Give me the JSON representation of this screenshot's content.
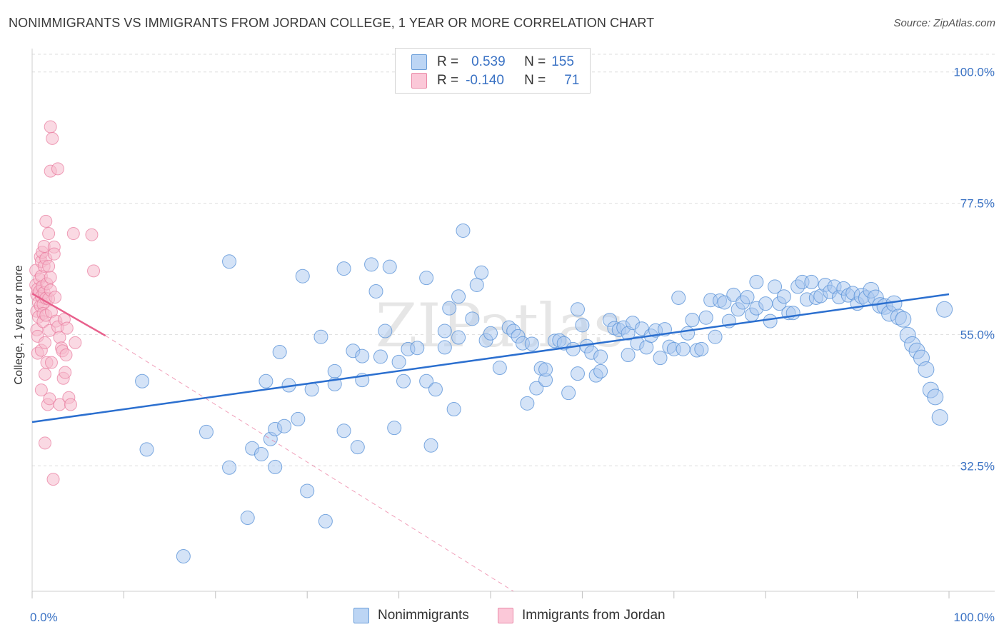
{
  "header": {
    "title": "NONIMMIGRANTS VS IMMIGRANTS FROM JORDAN COLLEGE, 1 YEAR OR MORE CORRELATION CHART",
    "source": "Source: ZipAtlas.com"
  },
  "legend_stats": [
    {
      "r_label": "R =",
      "r_value": "0.539",
      "n_label": "N =",
      "n_value": "155"
    },
    {
      "r_label": "R =",
      "r_value": "-0.140",
      "n_label": "N =",
      "n_value": "71"
    }
  ],
  "colors": {
    "blue_fill": "#a9c8f0",
    "blue_stroke": "#5b93d8",
    "blue_line": "#2b6fcf",
    "pink_fill": "#f6b9cc",
    "pink_stroke": "#e8799c",
    "pink_line": "#e8608c",
    "tick_text": "#3a72c4",
    "grid": "#dedede"
  },
  "chart_data": {
    "type": "scatter",
    "title": "NONIMMIGRANTS VS IMMIGRANTS FROM JORDAN COLLEGE, 1 YEAR OR MORE CORRELATION CHART",
    "xlabel": "",
    "ylabel": "College, 1 year or more",
    "xlim": [
      0,
      100
    ],
    "ylim": [
      11,
      104
    ],
    "x_tick_labels": [
      "0.0%",
      "100.0%"
    ],
    "y_ticks": [
      32.5,
      55.0,
      77.5,
      100.0
    ],
    "y_tick_labels": [
      "32.5%",
      "55.0%",
      "77.5%",
      "100.0%"
    ],
    "grid": "horizontal dashed",
    "legend_position": "top-center and bottom",
    "watermark": "ZIPatlas",
    "series": [
      {
        "name": "Nonimmigrants",
        "r": 0.539,
        "n": 155,
        "trend": {
          "x": [
            0,
            100
          ],
          "y": [
            40.0,
            61.9
          ]
        },
        "points": [
          [
            12,
            47
          ],
          [
            12.5,
            35.3
          ],
          [
            16.5,
            17
          ],
          [
            19,
            38.3
          ],
          [
            21.5,
            67.5
          ],
          [
            21.5,
            32.2
          ],
          [
            23.5,
            23.6
          ],
          [
            24,
            35.5
          ],
          [
            25,
            34.5
          ],
          [
            25.5,
            47
          ],
          [
            26,
            37.1
          ],
          [
            26.5,
            38.8
          ],
          [
            26.5,
            32.3
          ],
          [
            27,
            52
          ],
          [
            27.5,
            39.3
          ],
          [
            28,
            46.3
          ],
          [
            29,
            40.5
          ],
          [
            29.5,
            65
          ],
          [
            30,
            28.2
          ],
          [
            30.5,
            45.6
          ],
          [
            31.5,
            54.6
          ],
          [
            32,
            23
          ],
          [
            33,
            46.5
          ],
          [
            33,
            48.7
          ],
          [
            34,
            66.3
          ],
          [
            34,
            38.5
          ],
          [
            35,
            52.2
          ],
          [
            35.5,
            35.7
          ],
          [
            36,
            51.3
          ],
          [
            36,
            47.2
          ],
          [
            37,
            67
          ],
          [
            37.5,
            62.4
          ],
          [
            38,
            51.2
          ],
          [
            38.5,
            55.6
          ],
          [
            39,
            66.6
          ],
          [
            39.5,
            39
          ],
          [
            40,
            50.3
          ],
          [
            40.5,
            47
          ],
          [
            41,
            52.5
          ],
          [
            42,
            52.7
          ],
          [
            43,
            47
          ],
          [
            43,
            64.7
          ],
          [
            43.5,
            36
          ],
          [
            44,
            45.6
          ],
          [
            45,
            52.8
          ],
          [
            45,
            55.6
          ],
          [
            45.5,
            59.5
          ],
          [
            46,
            42.2
          ],
          [
            46.5,
            61.5
          ],
          [
            46.5,
            54.5
          ],
          [
            47,
            72.8
          ],
          [
            48,
            57.7
          ],
          [
            48.5,
            63.5
          ],
          [
            49,
            65.6
          ],
          [
            49.5,
            54
          ],
          [
            50,
            55.2
          ],
          [
            51,
            49.3
          ],
          [
            52,
            56.2
          ],
          [
            52.5,
            55.6
          ],
          [
            53,
            54.7
          ],
          [
            53.5,
            53.5
          ],
          [
            54,
            43.2
          ],
          [
            54.5,
            53.4
          ],
          [
            55,
            45.8
          ],
          [
            55.5,
            49.2
          ],
          [
            56,
            47.2
          ],
          [
            56,
            49
          ],
          [
            57,
            53.9
          ],
          [
            57.5,
            54
          ],
          [
            58,
            53.5
          ],
          [
            58.5,
            45
          ],
          [
            59,
            52.5
          ],
          [
            59.5,
            59.3
          ],
          [
            59.5,
            48.3
          ],
          [
            60,
            56.6
          ],
          [
            60.5,
            53
          ],
          [
            61,
            51.9
          ],
          [
            61.5,
            48
          ],
          [
            62,
            48.7
          ],
          [
            62,
            51.2
          ],
          [
            63,
            57.5
          ],
          [
            63.5,
            56.1
          ],
          [
            64,
            55.8
          ],
          [
            64.5,
            56.2
          ],
          [
            65,
            55.2
          ],
          [
            65,
            51.5
          ],
          [
            65.5,
            57
          ],
          [
            66,
            53.5
          ],
          [
            66.5,
            56
          ],
          [
            67,
            52.8
          ],
          [
            67.5,
            54.8
          ],
          [
            68,
            55.7
          ],
          [
            68.5,
            51
          ],
          [
            69,
            55.9
          ],
          [
            69.5,
            52.9
          ],
          [
            70,
            52.5
          ],
          [
            70.5,
            61.3
          ],
          [
            71,
            52.5
          ],
          [
            71.5,
            55.2
          ],
          [
            72,
            57.5
          ],
          [
            72.5,
            52.3
          ],
          [
            73,
            52.5
          ],
          [
            73.5,
            57.9
          ],
          [
            74,
            60.9
          ],
          [
            74.5,
            54.6
          ],
          [
            75,
            60.8
          ],
          [
            75.5,
            60.5
          ],
          [
            76,
            57.3
          ],
          [
            76.5,
            61.8
          ],
          [
            77,
            59.3
          ],
          [
            77.5,
            60.5
          ],
          [
            78,
            61.4
          ],
          [
            78.5,
            58.4
          ],
          [
            79,
            59.5
          ],
          [
            79,
            64
          ],
          [
            80,
            60.3
          ],
          [
            80.5,
            57.3
          ],
          [
            81,
            63.2
          ],
          [
            81.5,
            60.3
          ],
          [
            82,
            61.5
          ],
          [
            82.5,
            58.7
          ],
          [
            83,
            58.7
          ],
          [
            83.5,
            63.2
          ],
          [
            84,
            64
          ],
          [
            84.5,
            61
          ],
          [
            85,
            64
          ],
          [
            85.5,
            61.3
          ],
          [
            86,
            61.6
          ],
          [
            86.5,
            63.5
          ],
          [
            87,
            62.3
          ],
          [
            87.5,
            63.2
          ],
          [
            88,
            61.4
          ],
          [
            88.5,
            62.9
          ],
          [
            89,
            61.7
          ],
          [
            89.5,
            62.1
          ],
          [
            90,
            60.3
          ],
          [
            90.5,
            61.6
          ],
          [
            91,
            61.2
          ],
          [
            91.5,
            62.6
          ],
          [
            92,
            61.3
          ],
          [
            92.5,
            60
          ],
          [
            93,
            59.8
          ],
          [
            93.5,
            58.6
          ],
          [
            94,
            60.3
          ],
          [
            94.5,
            58
          ],
          [
            95,
            57.6
          ],
          [
            95.5,
            54.9
          ],
          [
            96,
            53.3
          ],
          [
            96.5,
            52.2
          ],
          [
            97,
            51
          ],
          [
            97.5,
            49
          ],
          [
            98,
            45.5
          ],
          [
            98.5,
            44.3
          ],
          [
            99,
            40.8
          ],
          [
            99.5,
            59.3
          ]
        ]
      },
      {
        "name": "Immigrants from Jordan",
        "r": -0.14,
        "n": 71,
        "trend": {
          "x": [
            0,
            8
          ],
          "y": [
            62.0,
            54.8
          ]
        },
        "trend_extended": {
          "x": [
            8,
            52.5
          ],
          "y": [
            54.8,
            11
          ]
        },
        "points": [
          [
            0.4,
            66
          ],
          [
            0.4,
            63.5
          ],
          [
            0.5,
            61.8
          ],
          [
            0.5,
            59
          ],
          [
            0.5,
            55.8
          ],
          [
            0.6,
            54.7
          ],
          [
            0.6,
            51.8
          ],
          [
            0.6,
            62.8
          ],
          [
            0.7,
            60.5
          ],
          [
            0.7,
            58
          ],
          [
            0.8,
            64.5
          ],
          [
            0.8,
            62.4
          ],
          [
            0.9,
            59.9
          ],
          [
            0.9,
            68.3
          ],
          [
            1,
            67.5
          ],
          [
            1,
            65
          ],
          [
            1,
            61.5
          ],
          [
            1,
            45.5
          ],
          [
            1,
            52.3
          ],
          [
            1.1,
            69.1
          ],
          [
            1.1,
            63.2
          ],
          [
            1.2,
            60.2
          ],
          [
            1.2,
            58.6
          ],
          [
            1.2,
            57.2
          ],
          [
            1.3,
            70.1
          ],
          [
            1.3,
            66.7
          ],
          [
            1.3,
            62.2
          ],
          [
            1.4,
            53.6
          ],
          [
            1.4,
            36.4
          ],
          [
            1.4,
            48.2
          ],
          [
            1.5,
            74.4
          ],
          [
            1.5,
            68
          ],
          [
            1.5,
            61.2
          ],
          [
            1.5,
            58.3
          ],
          [
            1.6,
            63.7
          ],
          [
            1.6,
            50.2
          ],
          [
            1.7,
            43
          ],
          [
            1.8,
            72.3
          ],
          [
            1.8,
            66.7
          ],
          [
            1.8,
            61.1
          ],
          [
            1.9,
            55.7
          ],
          [
            1.9,
            44
          ],
          [
            2,
            90.6
          ],
          [
            2,
            83
          ],
          [
            2,
            64.8
          ],
          [
            2,
            62.6
          ],
          [
            2.1,
            58.9
          ],
          [
            2.1,
            50.2
          ],
          [
            2.2,
            88.6
          ],
          [
            2.3,
            30.2
          ],
          [
            2.4,
            70
          ],
          [
            2.4,
            68.8
          ],
          [
            2.5,
            61.4
          ],
          [
            2.6,
            57.3
          ],
          [
            2.8,
            83.4
          ],
          [
            2.8,
            56.3
          ],
          [
            3,
            54.5
          ],
          [
            3,
            43
          ],
          [
            3.2,
            52.7
          ],
          [
            3.3,
            52.2
          ],
          [
            3.4,
            47.5
          ],
          [
            3.5,
            57.6
          ],
          [
            3.6,
            48.5
          ],
          [
            3.7,
            51.5
          ],
          [
            3.8,
            56.1
          ],
          [
            4,
            44.2
          ],
          [
            4.2,
            43
          ],
          [
            4.5,
            72.3
          ],
          [
            4.7,
            53.6
          ],
          [
            6.5,
            72.1
          ],
          [
            6.7,
            65.9
          ]
        ]
      }
    ]
  },
  "bottom_legend": [
    {
      "label": "Nonimmigrants"
    },
    {
      "label": "Immigrants from Jordan"
    }
  ]
}
